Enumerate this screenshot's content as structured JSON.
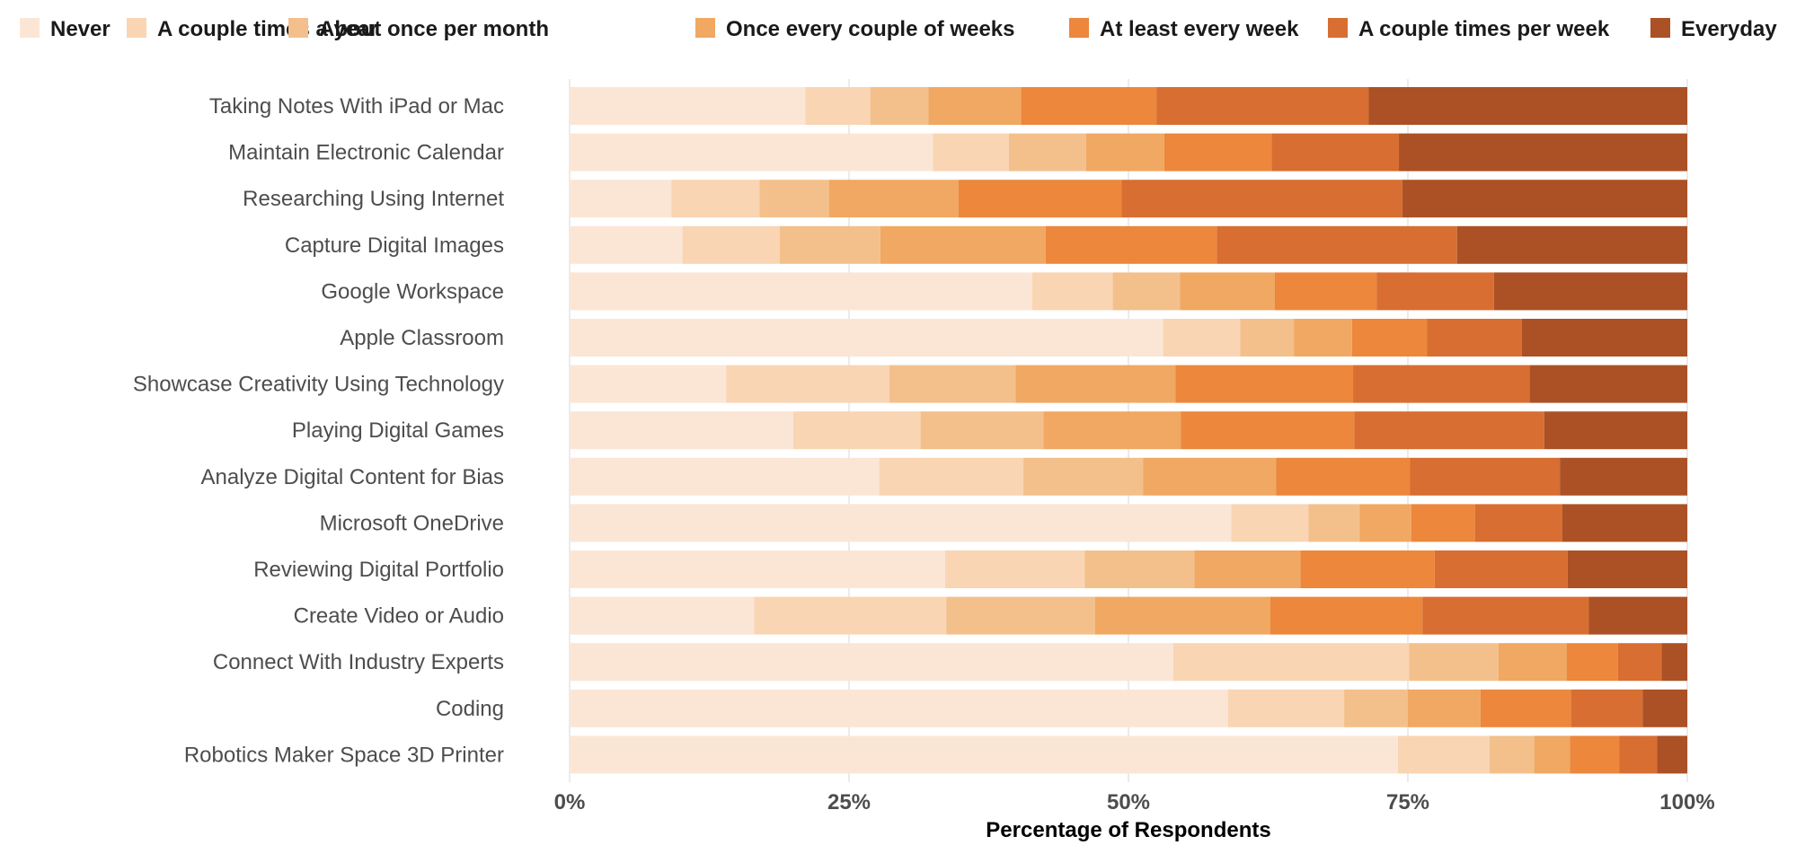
{
  "chart_data": {
    "type": "bar",
    "orientation": "horizontal",
    "stacked": true,
    "normalized": true,
    "title": "",
    "xlabel": "Percentage of Respondents",
    "ylabel": "",
    "xlim": [
      0,
      100
    ],
    "x_ticks": [
      0,
      25,
      50,
      75,
      100
    ],
    "x_tick_labels": [
      "0%",
      "25%",
      "50%",
      "75%",
      "100%"
    ],
    "grid": "vertical",
    "legend_position": "top",
    "categories": [
      "Taking Notes With iPad or Mac",
      "Maintain Electronic Calendar",
      "Researching Using Internet",
      "Capture Digital Images",
      "Google Workspace",
      "Apple Classroom",
      "Showcase Creativity Using Technology",
      "Playing Digital Games",
      "Analyze Digital Content for Bias",
      "Microsoft OneDrive",
      "Reviewing Digital Portfolio",
      "Create Video or Audio",
      "Connect With Industry Experts",
      "Coding",
      "Robotics Maker Space 3D Printer"
    ],
    "series": [
      {
        "name": "Never",
        "color": "#fbe6d6",
        "values": [
          21.1,
          32.5,
          9.1,
          10.1,
          41.4,
          53.1,
          14.0,
          20.0,
          27.7,
          59.2,
          33.6,
          16.5,
          54.0,
          58.9,
          74.1
        ]
      },
      {
        "name": "A couple times a year",
        "color": "#f9d5b3",
        "values": [
          5.8,
          6.8,
          7.9,
          8.7,
          7.2,
          6.9,
          14.6,
          11.4,
          12.9,
          6.9,
          12.5,
          17.2,
          21.1,
          10.4,
          8.2
        ]
      },
      {
        "name": "About once per month",
        "color": "#f3c08b",
        "values": [
          5.2,
          6.9,
          6.2,
          9.0,
          6.0,
          4.8,
          11.3,
          11.0,
          10.7,
          4.6,
          9.8,
          13.3,
          8.0,
          5.7,
          4.0
        ]
      },
      {
        "name": "Once every couple of weeks",
        "color": "#f0a862",
        "values": [
          8.3,
          7.0,
          11.6,
          14.8,
          8.5,
          5.2,
          14.3,
          12.3,
          11.9,
          4.6,
          9.5,
          15.7,
          6.1,
          6.5,
          3.2
        ]
      },
      {
        "name": "At least every week",
        "color": "#ec873c",
        "values": [
          12.1,
          9.6,
          14.6,
          15.3,
          9.1,
          6.7,
          15.9,
          15.5,
          12.0,
          5.7,
          12.0,
          13.6,
          4.6,
          8.1,
          4.4
        ]
      },
      {
        "name": "A couple times per week",
        "color": "#d86e31",
        "values": [
          19.0,
          11.4,
          25.1,
          21.5,
          10.5,
          8.5,
          15.8,
          17.0,
          13.4,
          7.8,
          11.9,
          14.9,
          3.9,
          6.4,
          3.4
        ]
      },
      {
        "name": "Everyday",
        "color": "#ab5125",
        "values": [
          28.5,
          25.8,
          25.5,
          20.6,
          17.3,
          14.8,
          14.1,
          12.8,
          11.4,
          11.2,
          10.7,
          8.8,
          2.3,
          4.0,
          2.7
        ]
      }
    ]
  }
}
